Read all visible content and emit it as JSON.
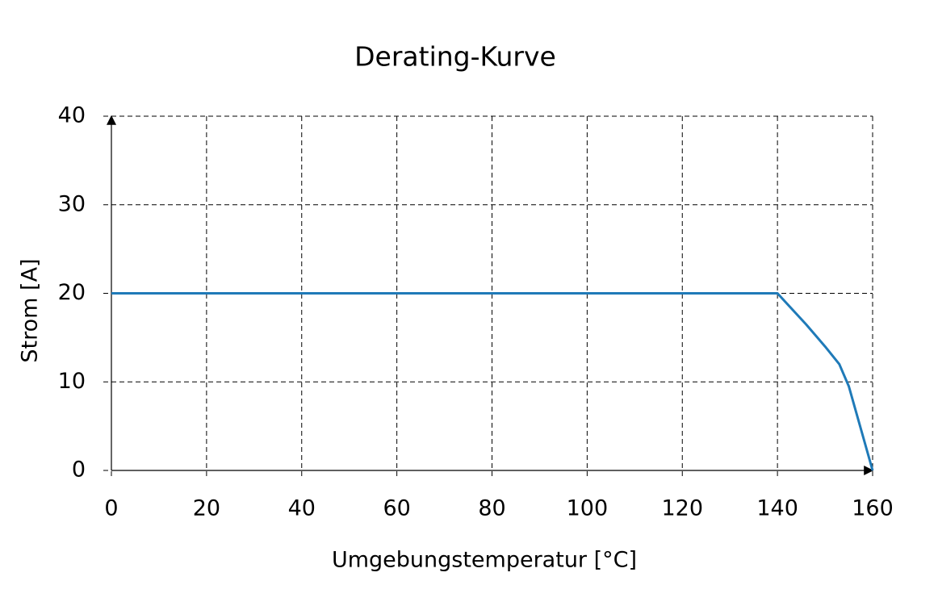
{
  "chart_data": {
    "type": "line",
    "title": "Derating-Kurve",
    "x_label": "Umgebungstemperatur [°C]",
    "y_label": "Strom [A]",
    "x": [
      0,
      140,
      146,
      150,
      153,
      155,
      160
    ],
    "series": [
      {
        "name": null,
        "color": "#1f7ab8",
        "values": [
          20,
          20,
          16.5,
          14,
          12,
          9.5,
          0
        ]
      }
    ],
    "xlim": [
      0,
      160
    ],
    "xticks": [
      0,
      20,
      40,
      60,
      80,
      100,
      120,
      140,
      160
    ],
    "ylim": [
      0,
      40
    ],
    "yticks": [
      0,
      10,
      20,
      30,
      40
    ],
    "grid": true
  }
}
